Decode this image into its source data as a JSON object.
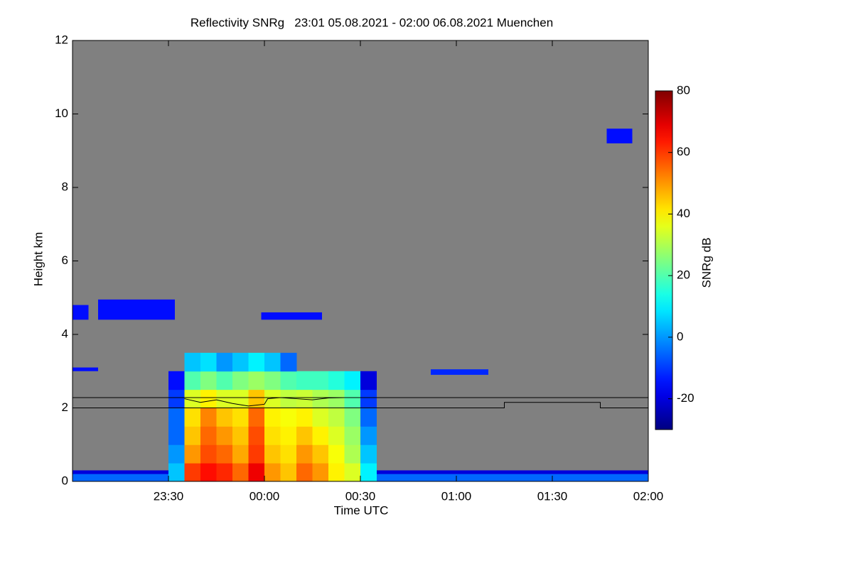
{
  "chart_data": {
    "type": "heatmap",
    "title": "Reflectivity SNRg   23:01 05.08.2021 - 02:00 06.08.2021 Muenchen",
    "x_label": "Time UTC",
    "y_label": "Height km",
    "colorbar_label": "SNRg dB",
    "xlim": [
      -60,
      120
    ],
    "xticks": [
      {
        "value": -30,
        "label": "23:30"
      },
      {
        "value": 0,
        "label": "00:00"
      },
      {
        "value": 30,
        "label": "00:30"
      },
      {
        "value": 60,
        "label": "01:00"
      },
      {
        "value": 90,
        "label": "01:30"
      },
      {
        "value": 120,
        "label": "02:00"
      }
    ],
    "ylim": [
      0,
      12
    ],
    "yticks": [
      0,
      2,
      4,
      6,
      8,
      10,
      12
    ],
    "zlim": [
      -30,
      80
    ],
    "zticks": [
      -20,
      0,
      20,
      40,
      60,
      80
    ],
    "colormap": "jet",
    "background": "#808080",
    "x_edges": [
      -30,
      -25,
      -20,
      -15,
      -10,
      -5,
      0,
      5,
      10,
      15,
      20,
      25,
      30,
      35
    ],
    "y_edges": [
      0,
      0.5,
      1,
      1.5,
      2,
      2.5,
      3,
      3.5
    ],
    "z": [
      [
        5,
        60,
        65,
        62,
        55,
        68,
        50,
        45,
        55,
        50,
        40,
        35,
        10
      ],
      [
        0,
        50,
        58,
        55,
        48,
        60,
        45,
        42,
        50,
        45,
        38,
        30,
        5
      ],
      [
        -5,
        45,
        55,
        50,
        45,
        58,
        42,
        40,
        45,
        40,
        35,
        28,
        0
      ],
      [
        -5,
        42,
        52,
        45,
        42,
        55,
        40,
        38,
        40,
        35,
        32,
        25,
        -5
      ],
      [
        -10,
        35,
        40,
        35,
        35,
        45,
        35,
        32,
        33,
        30,
        28,
        20,
        -10
      ],
      [
        -15,
        20,
        25,
        20,
        25,
        28,
        25,
        20,
        18,
        18,
        15,
        10,
        -20
      ],
      [
        null,
        5,
        8,
        0,
        5,
        10,
        5,
        -5,
        null,
        null,
        null,
        null,
        null
      ]
    ],
    "patches": [
      {
        "x": [
          -60,
          120
        ],
        "y": [
          0,
          0.3
        ],
        "value": -5
      },
      {
        "x": [
          -60,
          120
        ],
        "y": [
          0.2,
          0.3
        ],
        "value": -20
      },
      {
        "x": [
          -52,
          -28
        ],
        "y": [
          4.4,
          4.95
        ],
        "value": -15
      },
      {
        "x": [
          -60,
          -55
        ],
        "y": [
          4.4,
          4.8
        ],
        "value": -15
      },
      {
        "x": [
          -1,
          18
        ],
        "y": [
          4.4,
          4.6
        ],
        "value": -15
      },
      {
        "x": [
          -60,
          -52
        ],
        "y": [
          3.0,
          3.1
        ],
        "value": -15
      },
      {
        "x": [
          52,
          70
        ],
        "y": [
          2.9,
          3.05
        ],
        "value": -12
      },
      {
        "x": [
          107,
          115
        ],
        "y": [
          9.2,
          9.6
        ],
        "value": -15
      }
    ],
    "lines": [
      {
        "color": "#000000",
        "x": [
          -60,
          75,
          75,
          105,
          105,
          120
        ],
        "values": [
          2.0,
          2.0,
          2.15,
          2.15,
          2.0,
          2.0
        ]
      },
      {
        "color": "#000000",
        "x": [
          -60,
          120
        ],
        "values": [
          2.28,
          2.28
        ]
      },
      {
        "color": "#000000",
        "x": [
          -25,
          -20,
          -15,
          -10,
          -5,
          0,
          1,
          5,
          10,
          15,
          20,
          25,
          30
        ],
        "values": [
          2.25,
          2.15,
          2.22,
          2.12,
          2.05,
          2.1,
          2.25,
          2.28,
          2.25,
          2.22,
          2.27,
          2.28,
          2.28
        ]
      }
    ]
  }
}
